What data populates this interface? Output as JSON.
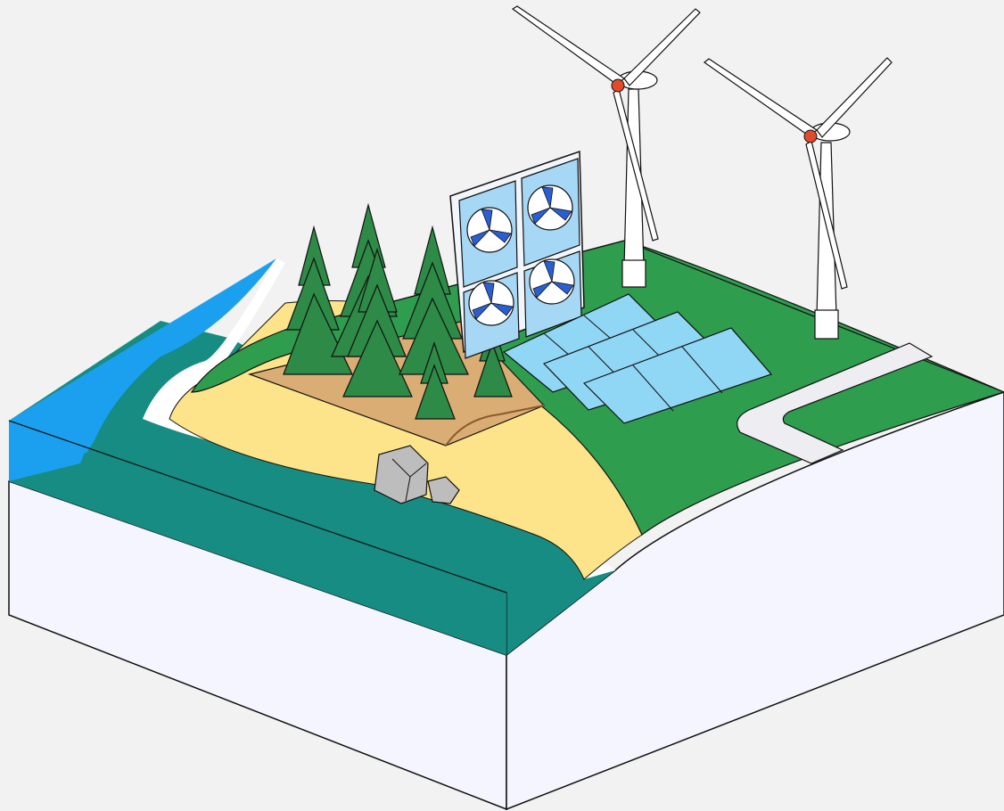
{
  "colors": {
    "background": "#f2f2f2",
    "block_white": "#f4f5fe",
    "sea_deep": "#168c82",
    "sea_surface": "#1ba0f0",
    "foam": "#ffffff",
    "sand": "#fde38a",
    "grass": "#2e9d4d",
    "forest_floor": "#d9ad74",
    "tree_green": "#2d8a47",
    "panel_frame": "#f2f6fb",
    "panel_light_blue": "#a6d8f5",
    "fan_blade_blue": "#2a5fd3",
    "solar_blue": "#90d6f5",
    "road": "#ededf2",
    "turbine_white": "#ffffff",
    "turbine_hub": "#e14b2a",
    "rock_gray": "#bdbdbd",
    "outline": "#111111"
  },
  "icons": {
    "trees": "pine-tree-icon",
    "fans": "fan-wall-icon",
    "solar": "solar-panel-icon",
    "turbines": "wind-turbine-icon",
    "rocks": "boulder-icon",
    "road": "road-icon"
  }
}
